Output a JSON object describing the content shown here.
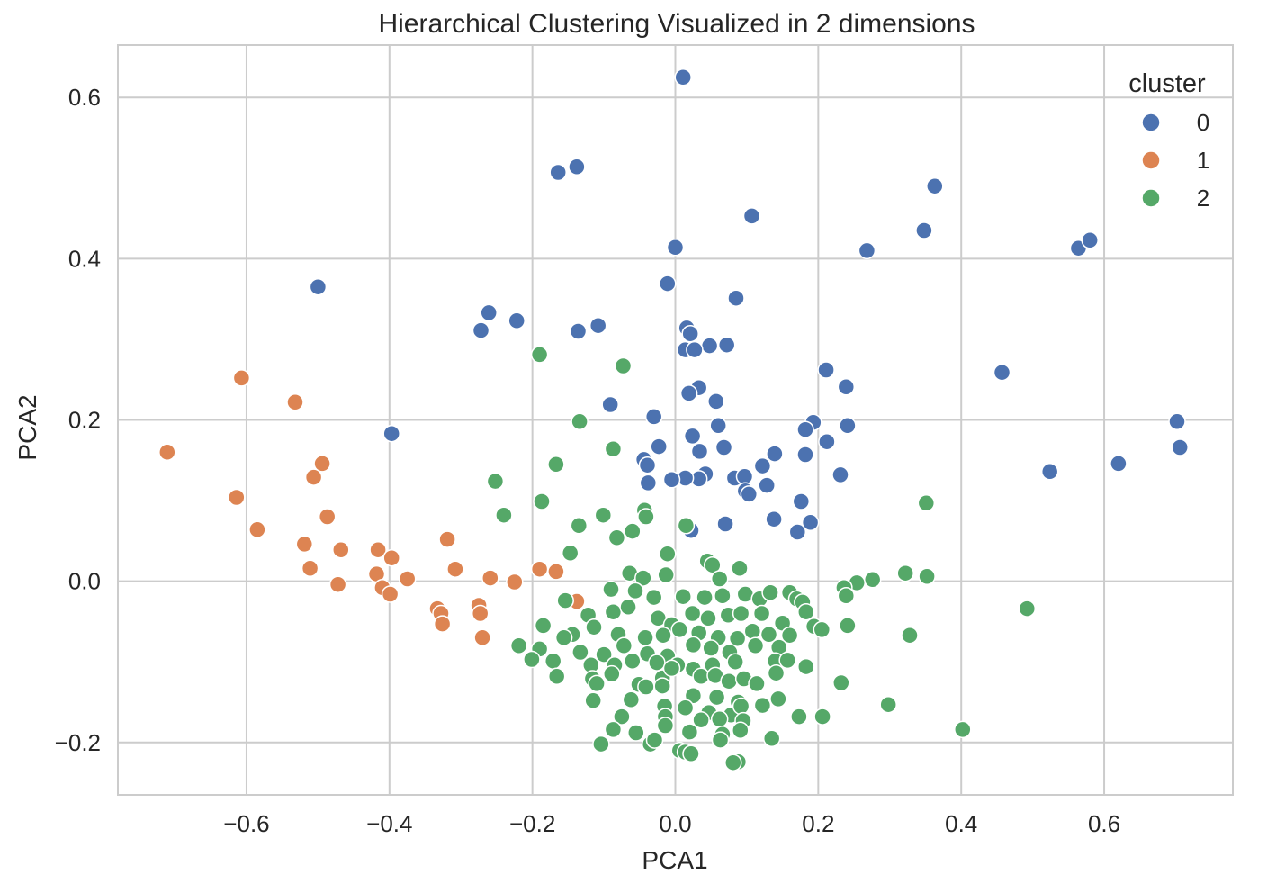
{
  "chart_data": {
    "type": "scatter",
    "title": "Hierarchical Clustering Visualized in 2 dimensions",
    "xlabel": "PCA1",
    "ylabel": "PCA2",
    "xlim": [
      -0.78,
      0.78
    ],
    "ylim": [
      -0.265,
      0.665
    ],
    "xticks": [
      -0.6,
      -0.4,
      -0.2,
      0.0,
      0.2,
      0.4,
      0.6
    ],
    "xtick_labels": [
      "−0.6",
      "−0.4",
      "−0.2",
      "0.0",
      "0.2",
      "0.4",
      "0.6"
    ],
    "yticks": [
      -0.2,
      0.0,
      0.2,
      0.4,
      0.6
    ],
    "ytick_labels": [
      "−0.2",
      "0.0",
      "0.2",
      "0.4",
      "0.6"
    ],
    "grid": true,
    "legend": {
      "title": "cluster",
      "position": "top-right"
    },
    "series": [
      {
        "name": "0",
        "color": "#4c72b0",
        "points": [
          [
            0.011,
            0.625
          ],
          [
            -0.164,
            0.507
          ],
          [
            -0.138,
            0.514
          ],
          [
            0.107,
            0.453
          ],
          [
            0.363,
            0.49
          ],
          [
            0.348,
            0.435
          ],
          [
            0.268,
            0.41
          ],
          [
            0.0,
            0.414
          ],
          [
            0.564,
            0.413
          ],
          [
            0.58,
            0.423
          ],
          [
            -0.5,
            0.365
          ],
          [
            -0.011,
            0.369
          ],
          [
            0.085,
            0.351
          ],
          [
            -0.261,
            0.333
          ],
          [
            -0.222,
            0.323
          ],
          [
            -0.272,
            0.311
          ],
          [
            -0.136,
            0.31
          ],
          [
            -0.108,
            0.317
          ],
          [
            0.016,
            0.314
          ],
          [
            0.021,
            0.307
          ],
          [
            0.048,
            0.292
          ],
          [
            0.072,
            0.293
          ],
          [
            0.014,
            0.287
          ],
          [
            0.027,
            0.287
          ],
          [
            0.211,
            0.262
          ],
          [
            0.457,
            0.259
          ],
          [
            0.239,
            0.241
          ],
          [
            0.033,
            0.24
          ],
          [
            0.019,
            0.233
          ],
          [
            0.057,
            0.223
          ],
          [
            -0.091,
            0.219
          ],
          [
            -0.03,
            0.204
          ],
          [
            0.702,
            0.198
          ],
          [
            0.06,
            0.193
          ],
          [
            0.193,
            0.197
          ],
          [
            0.241,
            0.193
          ],
          [
            0.182,
            0.188
          ],
          [
            0.024,
            0.18
          ],
          [
            0.212,
            0.173
          ],
          [
            -0.397,
            0.183
          ],
          [
            0.706,
            0.166
          ],
          [
            -0.023,
            0.167
          ],
          [
            0.068,
            0.166
          ],
          [
            0.034,
            0.161
          ],
          [
            0.139,
            0.158
          ],
          [
            0.182,
            0.157
          ],
          [
            -0.044,
            0.151
          ],
          [
            -0.039,
            0.144
          ],
          [
            0.122,
            0.143
          ],
          [
            0.62,
            0.146
          ],
          [
            0.524,
            0.136
          ],
          [
            0.231,
            0.132
          ],
          [
            0.042,
            0.133
          ],
          [
            0.033,
            0.127
          ],
          [
            0.083,
            0.128
          ],
          [
            0.097,
            0.13
          ],
          [
            0.014,
            0.128
          ],
          [
            -0.005,
            0.126
          ],
          [
            -0.038,
            0.122
          ],
          [
            0.128,
            0.119
          ],
          [
            0.098,
            0.112
          ],
          [
            0.103,
            0.108
          ],
          [
            0.176,
            0.099
          ],
          [
            0.138,
            0.077
          ],
          [
            0.07,
            0.071
          ],
          [
            0.189,
            0.073
          ],
          [
            0.171,
            0.061
          ],
          [
            0.022,
            0.063
          ]
        ]
      },
      {
        "name": "1",
        "color": "#dd8452",
        "points": [
          [
            -0.607,
            0.252
          ],
          [
            -0.532,
            0.222
          ],
          [
            -0.711,
            0.16
          ],
          [
            -0.494,
            0.146
          ],
          [
            -0.506,
            0.129
          ],
          [
            -0.614,
            0.104
          ],
          [
            -0.487,
            0.08
          ],
          [
            -0.585,
            0.064
          ],
          [
            -0.519,
            0.046
          ],
          [
            -0.468,
            0.039
          ],
          [
            -0.416,
            0.039
          ],
          [
            -0.397,
            0.029
          ],
          [
            -0.319,
            0.052
          ],
          [
            -0.511,
            0.016
          ],
          [
            -0.308,
            0.015
          ],
          [
            -0.418,
            0.009
          ],
          [
            -0.259,
            0.004
          ],
          [
            -0.375,
            0.003
          ],
          [
            -0.19,
            0.015
          ],
          [
            -0.167,
            0.012
          ],
          [
            -0.225,
            -0.001
          ],
          [
            -0.472,
            -0.004
          ],
          [
            -0.41,
            -0.008
          ],
          [
            -0.399,
            -0.016
          ],
          [
            -0.138,
            -0.025
          ],
          [
            -0.333,
            -0.034
          ],
          [
            -0.328,
            -0.04
          ],
          [
            -0.275,
            -0.03
          ],
          [
            -0.273,
            -0.04
          ],
          [
            -0.326,
            -0.053
          ],
          [
            -0.27,
            -0.07
          ]
        ]
      },
      {
        "name": "2",
        "color": "#55a868",
        "points": [
          [
            -0.19,
            0.281
          ],
          [
            -0.073,
            0.267
          ],
          [
            -0.134,
            0.198
          ],
          [
            -0.087,
            0.164
          ],
          [
            -0.167,
            0.145
          ],
          [
            -0.252,
            0.124
          ],
          [
            -0.187,
            0.099
          ],
          [
            -0.24,
            0.082
          ],
          [
            -0.135,
            0.069
          ],
          [
            -0.101,
            0.082
          ],
          [
            -0.043,
            0.088
          ],
          [
            -0.041,
            0.08
          ],
          [
            -0.06,
            0.062
          ],
          [
            -0.082,
            0.054
          ],
          [
            0.015,
            0.069
          ],
          [
            0.351,
            0.097
          ],
          [
            -0.147,
            0.035
          ],
          [
            -0.011,
            0.034
          ],
          [
            0.045,
            0.025
          ],
          [
            0.052,
            0.02
          ],
          [
            0.09,
            0.016
          ],
          [
            0.322,
            0.01
          ],
          [
            0.352,
            0.006
          ],
          [
            -0.064,
            0.01
          ],
          [
            -0.045,
            0.004
          ],
          [
            -0.013,
            0.008
          ],
          [
            0.062,
            0.003
          ],
          [
            0.276,
            0.002
          ],
          [
            0.254,
            -0.002
          ],
          [
            0.236,
            -0.008
          ],
          [
            0.239,
            -0.018
          ],
          [
            -0.154,
            -0.024
          ],
          [
            -0.09,
            -0.01
          ],
          [
            -0.056,
            -0.012
          ],
          [
            -0.03,
            -0.02
          ],
          [
            0.011,
            -0.019
          ],
          [
            0.041,
            -0.02
          ],
          [
            0.066,
            -0.018
          ],
          [
            0.098,
            -0.016
          ],
          [
            0.118,
            -0.022
          ],
          [
            0.133,
            -0.014
          ],
          [
            0.16,
            -0.014
          ],
          [
            0.17,
            -0.022
          ],
          [
            0.178,
            -0.026
          ],
          [
            0.183,
            -0.038
          ],
          [
            0.492,
            -0.034
          ],
          [
            -0.122,
            -0.042
          ],
          [
            -0.087,
            -0.038
          ],
          [
            -0.066,
            -0.032
          ],
          [
            -0.024,
            -0.046
          ],
          [
            -0.005,
            -0.054
          ],
          [
            0.024,
            -0.04
          ],
          [
            0.046,
            -0.046
          ],
          [
            0.074,
            -0.042
          ],
          [
            0.092,
            -0.04
          ],
          [
            0.121,
            -0.04
          ],
          [
            0.15,
            -0.052
          ],
          [
            0.194,
            -0.056
          ],
          [
            0.241,
            -0.055
          ],
          [
            -0.185,
            -0.055
          ],
          [
            -0.144,
            -0.066
          ],
          [
            -0.114,
            -0.057
          ],
          [
            -0.08,
            -0.066
          ],
          [
            -0.042,
            -0.07
          ],
          [
            -0.017,
            -0.067
          ],
          [
            0.006,
            -0.06
          ],
          [
            0.033,
            -0.064
          ],
          [
            0.06,
            -0.07
          ],
          [
            0.087,
            -0.071
          ],
          [
            0.108,
            -0.062
          ],
          [
            0.131,
            -0.066
          ],
          [
            0.16,
            -0.067
          ],
          [
            0.205,
            -0.06
          ],
          [
            0.328,
            -0.067
          ],
          [
            -0.219,
            -0.08
          ],
          [
            -0.19,
            -0.084
          ],
          [
            -0.156,
            -0.07
          ],
          [
            -0.133,
            -0.088
          ],
          [
            -0.1,
            -0.091
          ],
          [
            -0.072,
            -0.08
          ],
          [
            -0.039,
            -0.09
          ],
          [
            -0.011,
            -0.093
          ],
          [
            0.025,
            -0.079
          ],
          [
            0.05,
            -0.083
          ],
          [
            0.076,
            -0.088
          ],
          [
            0.112,
            -0.08
          ],
          [
            0.145,
            -0.082
          ],
          [
            -0.201,
            -0.097
          ],
          [
            -0.171,
            -0.099
          ],
          [
            -0.118,
            -0.104
          ],
          [
            -0.085,
            -0.104
          ],
          [
            -0.06,
            -0.099
          ],
          [
            -0.026,
            -0.101
          ],
          [
            0.003,
            -0.104
          ],
          [
            0.025,
            -0.109
          ],
          [
            0.052,
            -0.104
          ],
          [
            0.084,
            -0.1
          ],
          [
            0.14,
            -0.099
          ],
          [
            0.157,
            -0.098
          ],
          [
            0.183,
            -0.106
          ],
          [
            -0.166,
            -0.118
          ],
          [
            -0.116,
            -0.121
          ],
          [
            -0.089,
            -0.115
          ],
          [
            -0.051,
            -0.128
          ],
          [
            -0.018,
            -0.12
          ],
          [
            -0.005,
            -0.108
          ],
          [
            0.036,
            -0.118
          ],
          [
            0.056,
            -0.117
          ],
          [
            0.075,
            -0.124
          ],
          [
            0.096,
            -0.121
          ],
          [
            0.114,
            -0.127
          ],
          [
            0.141,
            -0.114
          ],
          [
            0.232,
            -0.126
          ],
          [
            -0.11,
            -0.127
          ],
          [
            -0.041,
            -0.131
          ],
          [
            -0.018,
            -0.13
          ],
          [
            0.025,
            -0.142
          ],
          [
            0.058,
            -0.144
          ],
          [
            0.088,
            -0.15
          ],
          [
            0.122,
            -0.154
          ],
          [
            0.144,
            -0.146
          ],
          [
            -0.115,
            -0.148
          ],
          [
            -0.062,
            -0.147
          ],
          [
            -0.015,
            -0.155
          ],
          [
            0.014,
            -0.157
          ],
          [
            0.047,
            -0.163
          ],
          [
            0.078,
            -0.166
          ],
          [
            0.092,
            -0.155
          ],
          [
            0.298,
            -0.153
          ],
          [
            -0.075,
            -0.168
          ],
          [
            -0.014,
            -0.168
          ],
          [
            0.036,
            -0.172
          ],
          [
            0.062,
            -0.171
          ],
          [
            0.095,
            -0.173
          ],
          [
            0.173,
            -0.168
          ],
          [
            0.206,
            -0.168
          ],
          [
            -0.087,
            -0.184
          ],
          [
            -0.055,
            -0.188
          ],
          [
            -0.014,
            -0.179
          ],
          [
            0.02,
            -0.187
          ],
          [
            0.066,
            -0.19
          ],
          [
            0.091,
            -0.185
          ],
          [
            0.402,
            -0.184
          ],
          [
            -0.104,
            -0.202
          ],
          [
            -0.035,
            -0.202
          ],
          [
            -0.029,
            -0.197
          ],
          [
            0.006,
            -0.21
          ],
          [
            0.014,
            -0.212
          ],
          [
            0.022,
            -0.214
          ],
          [
            0.063,
            -0.197
          ],
          [
            0.135,
            -0.195
          ],
          [
            0.088,
            -0.224
          ],
          [
            0.081,
            -0.225
          ]
        ]
      }
    ]
  }
}
